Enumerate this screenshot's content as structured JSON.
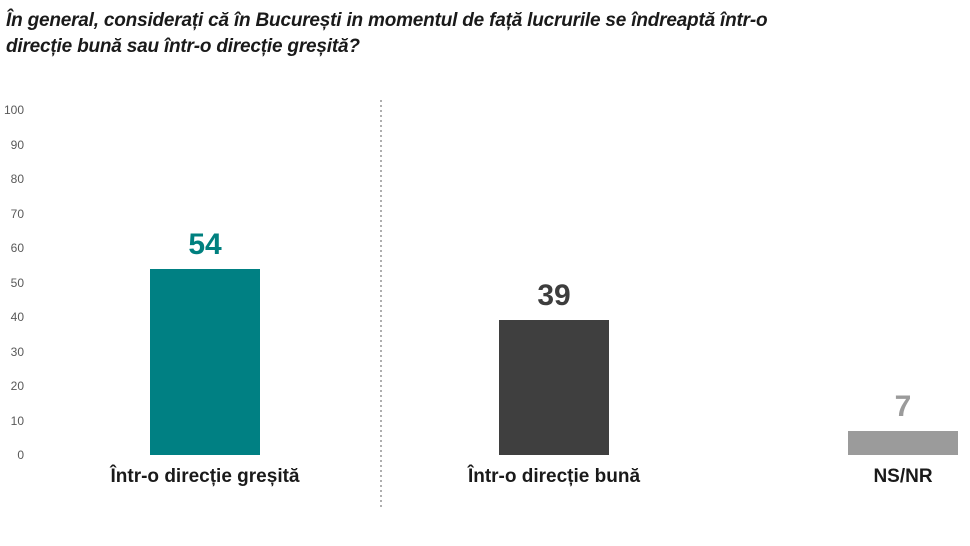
{
  "header": {
    "title_lines": [
      "În general, considerați că în București in momentul de față lucrurile se îndreaptă într-o",
      "direcție bună sau într-o direcție greșită?"
    ]
  },
  "chart_data": {
    "type": "bar",
    "title": "În general, considerați că în București in momentul de față lucrurile se îndreaptă într-o direcție bună sau într-o direcție greșită?",
    "categories": [
      "Într-o direcție greșită",
      "Într-o direcție bună",
      "NS/NR"
    ],
    "values": [
      54,
      39,
      7
    ],
    "bar_colors": [
      "#008083",
      "#3F3F3F",
      "#9B9B9B"
    ],
    "value_label_colors": [
      "#00807F",
      "#3D3D3D",
      "#9B9B9B"
    ],
    "yticks": [
      0,
      10,
      20,
      30,
      40,
      50,
      60,
      70,
      80,
      90,
      100
    ],
    "ylim": [
      0,
      100
    ],
    "xlabel": "",
    "ylabel": "",
    "grid": false,
    "legend": "none",
    "tick_label_color": "#595959",
    "separator": "dotted vertical line between first and second category"
  }
}
